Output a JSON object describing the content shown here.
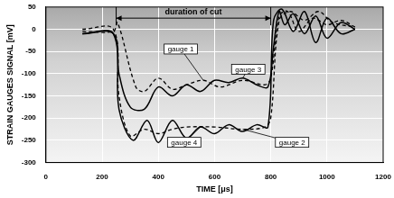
{
  "chart_data": {
    "type": "line",
    "x_label": "TIME [μs]",
    "y_label": "STRAIN GAUGES SIGNAL [mV]",
    "xlim": [
      0,
      1200
    ],
    "xticks": [
      0,
      200,
      400,
      600,
      800,
      1000,
      1200
    ],
    "ylim": [
      -300,
      50
    ],
    "yticks": [
      -300,
      -250,
      -200,
      -150,
      -100,
      -50,
      0,
      50
    ],
    "grid": true,
    "annotations": [
      {
        "text": "duration of cut",
        "x_start": 250,
        "x_end": 800,
        "y": 25
      }
    ],
    "series": [
      {
        "name": "gauge 1",
        "color": "#000000",
        "line_style": "dashed",
        "x": [
          130,
          240,
          255,
          320,
          350,
          400,
          450,
          500,
          560,
          620,
          700,
          780,
          800,
          830,
          860,
          900,
          950,
          1000,
          1050,
          1100
        ],
        "values": [
          -5,
          -5,
          15,
          -130,
          -140,
          -110,
          -135,
          -125,
          -115,
          -130,
          -115,
          -125,
          -110,
          30,
          40,
          -5,
          25,
          10,
          20,
          5
        ]
      },
      {
        "name": "gauge 3",
        "color": "#000000",
        "line_style": "solid",
        "x": [
          130,
          240,
          260,
          300,
          350,
          400,
          450,
          500,
          550,
          600,
          650,
          700,
          750,
          790,
          810,
          830,
          850,
          880,
          920,
          960,
          1000,
          1050,
          1100
        ],
        "values": [
          -10,
          -10,
          -100,
          -175,
          -180,
          -130,
          -150,
          -125,
          -140,
          -115,
          -120,
          -110,
          -125,
          -130,
          -40,
          40,
          10,
          35,
          -10,
          30,
          -20,
          15,
          0
        ]
      },
      {
        "name": "gauge 2",
        "color": "#000000",
        "line_style": "dashed",
        "x": [
          130,
          240,
          260,
          300,
          350,
          400,
          450,
          500,
          600,
          700,
          780,
          800,
          830,
          870,
          920,
          970,
          1020,
          1100
        ],
        "values": [
          0,
          0,
          -150,
          -240,
          -225,
          -235,
          -225,
          -220,
          -220,
          -225,
          -220,
          -200,
          20,
          40,
          20,
          40,
          15,
          5
        ]
      },
      {
        "name": "gauge 4",
        "color": "#000000",
        "line_style": "solid",
        "x": [
          130,
          240,
          260,
          310,
          360,
          400,
          450,
          500,
          550,
          600,
          650,
          700,
          750,
          790,
          810,
          840,
          880,
          920,
          960,
          1000,
          1050,
          1100
        ],
        "values": [
          -10,
          -10,
          -180,
          -250,
          -205,
          -255,
          -205,
          -245,
          -220,
          -235,
          -215,
          -230,
          -215,
          -220,
          20,
          45,
          -5,
          40,
          -30,
          25,
          -10,
          0
        ]
      }
    ]
  }
}
